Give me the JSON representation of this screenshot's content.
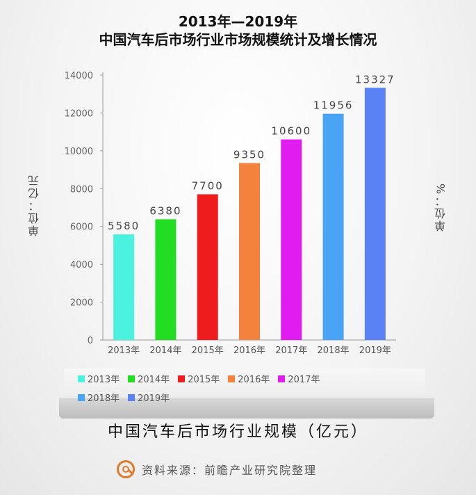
{
  "header": {
    "line1": "2013年—2019年",
    "line2": "中国汽车后市场行业市场规模统计及增长情况"
  },
  "units": {
    "left": "单位：亿元",
    "right": "单位：%"
  },
  "chart_data": {
    "type": "bar",
    "title": "2013年—2019年 中国汽车后市场行业市场规模统计及增长情况",
    "categories": [
      "2013年",
      "2014年",
      "2015年",
      "2016年",
      "2017年",
      "2018年",
      "2019年"
    ],
    "values": [
      5580,
      6380,
      7700,
      9350,
      10600,
      11956,
      13327
    ],
    "colors": [
      "#4cf2e0",
      "#22dd22",
      "#ee1c1c",
      "#f5823c",
      "#e01cf0",
      "#4aa4f5",
      "#5a82f5"
    ],
    "ylim": [
      0,
      14000
    ],
    "yticks": [
      0,
      2000,
      4000,
      6000,
      8000,
      10000,
      12000,
      14000
    ],
    "ylabel": "单位：亿元",
    "y2label": "单位：%",
    "grid": false,
    "legend": {
      "position": "bottom",
      "entries": [
        "2013年",
        "2014年",
        "2015年",
        "2016年",
        "2017年",
        "2018年",
        "2019年"
      ]
    }
  },
  "footer": {
    "chart_name": "中国汽车后市场行业规模（亿元）",
    "source": "资料来源：前瞻产业研究院整理",
    "logo_icon": "qianzhan-logo-icon"
  }
}
